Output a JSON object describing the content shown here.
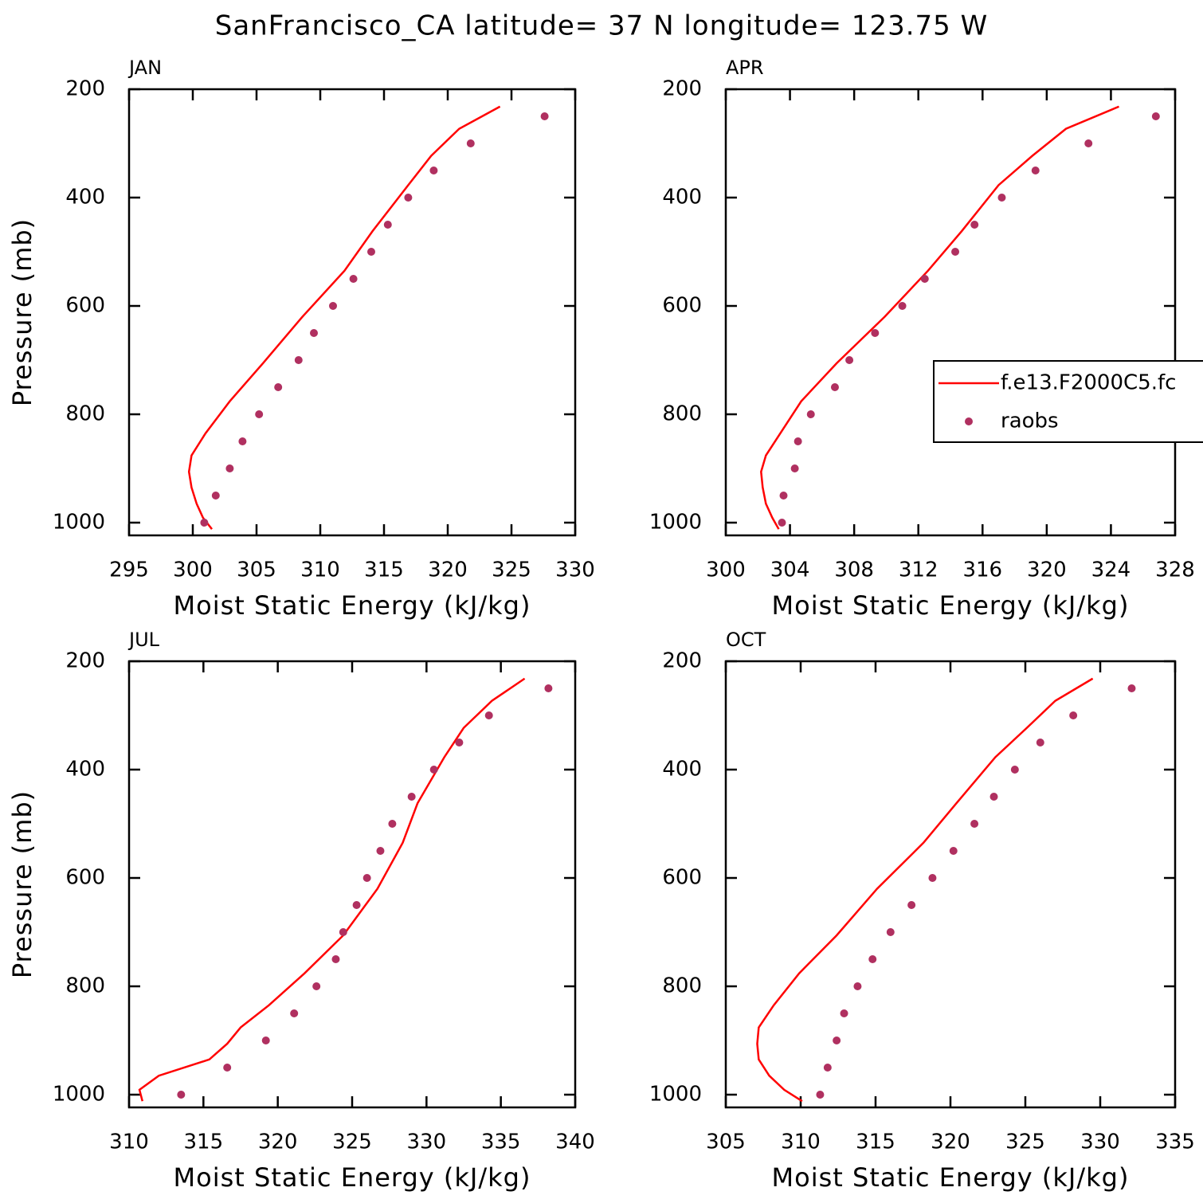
{
  "title": "SanFrancisco_CA  latitude= 37 N longitude= 123.75 W",
  "chart_data": [
    {
      "type": "line",
      "title": "JAN",
      "xlabel": "Moist Static Energy (kJ/kg)",
      "ylabel": "Pressure (mb)",
      "xlim": [
        295,
        330
      ],
      "xticks": [
        295,
        300,
        305,
        310,
        315,
        320,
        325,
        330
      ],
      "ylim": [
        1023.5,
        200
      ],
      "yticks": [
        200,
        400,
        600,
        800,
        1000
      ],
      "series": [
        {
          "style": "line",
          "color": "#ff0000",
          "x": [
            324.1,
            320.9,
            318.7,
            316.9,
            314.1,
            311.9,
            308.6,
            305.5,
            302.9,
            301.0,
            299.9,
            299.7,
            299.9,
            300.3,
            300.8,
            301.5
          ],
          "y": [
            232,
            273,
            323,
            377,
            462,
            535,
            620,
            706,
            776,
            835,
            876,
            906,
            935,
            965,
            991,
            1012
          ]
        },
        {
          "style": "marker",
          "color": "#b03060",
          "x": [
            327.6,
            321.8,
            318.9,
            316.9,
            315.3,
            314.0,
            312.6,
            311.0,
            309.5,
            308.3,
            306.7,
            305.2,
            303.9,
            302.9,
            301.8,
            300.9
          ],
          "y": [
            250,
            300,
            350,
            400,
            450,
            500,
            550,
            600,
            650,
            700,
            750,
            800,
            850,
            900,
            950,
            1000
          ]
        }
      ]
    },
    {
      "type": "line",
      "title": "APR",
      "xlabel": "Moist Static Energy (kJ/kg)",
      "xlim": [
        300,
        328
      ],
      "xticks": [
        300,
        304,
        308,
        312,
        316,
        320,
        324,
        328
      ],
      "ylim": [
        1023.5,
        200
      ],
      "yticks": [
        200,
        400,
        600,
        800,
        1000
      ],
      "legend": "right",
      "series": [
        {
          "name": "f.e13.F2000C5.fc",
          "style": "line",
          "color": "#ff0000",
          "x": [
            324.5,
            321.2,
            319.1,
            317.0,
            314.7,
            312.6,
            309.9,
            306.9,
            304.7,
            303.4,
            302.5,
            302.2,
            302.3,
            302.5,
            302.9,
            303.3
          ],
          "y": [
            232,
            273,
            323,
            377,
            462,
            535,
            620,
            706,
            776,
            835,
            876,
            906,
            935,
            965,
            991,
            1012
          ]
        },
        {
          "name": "raobs",
          "style": "marker",
          "color": "#b03060",
          "x": [
            326.8,
            322.6,
            319.3,
            317.2,
            315.5,
            314.3,
            312.4,
            311.0,
            309.3,
            307.7,
            306.8,
            305.3,
            304.5,
            304.3,
            303.6,
            303.5
          ],
          "y": [
            250,
            300,
            350,
            400,
            450,
            500,
            550,
            600,
            650,
            700,
            750,
            800,
            850,
            900,
            950,
            1000
          ]
        }
      ]
    },
    {
      "type": "line",
      "title": "JUL",
      "xlabel": "Moist Static Energy (kJ/kg)",
      "ylabel": "Pressure (mb)",
      "xlim": [
        310,
        340
      ],
      "xticks": [
        310,
        315,
        320,
        325,
        330,
        335,
        340
      ],
      "ylim": [
        1023.5,
        200
      ],
      "yticks": [
        200,
        400,
        600,
        800,
        1000
      ],
      "series": [
        {
          "style": "line",
          "color": "#ff0000",
          "x": [
            336.6,
            334.4,
            332.5,
            331.2,
            329.4,
            328.4,
            326.7,
            324.4,
            321.8,
            319.4,
            317.5,
            316.6,
            315.4,
            312.0,
            310.7,
            310.9
          ],
          "y": [
            232,
            273,
            323,
            377,
            462,
            535,
            620,
            706,
            776,
            835,
            876,
            906,
            935,
            965,
            991,
            1012
          ]
        },
        {
          "style": "marker",
          "color": "#b03060",
          "x": [
            338.2,
            334.2,
            332.2,
            330.5,
            329.0,
            327.7,
            326.9,
            326.0,
            325.3,
            324.4,
            323.9,
            322.6,
            321.1,
            319.2,
            316.6,
            313.5
          ],
          "y": [
            250,
            300,
            350,
            400,
            450,
            500,
            550,
            600,
            650,
            700,
            750,
            800,
            850,
            900,
            950,
            1000
          ]
        }
      ]
    },
    {
      "type": "line",
      "title": "OCT",
      "xlabel": "Moist Static Energy (kJ/kg)",
      "xlim": [
        305,
        335
      ],
      "xticks": [
        305,
        310,
        315,
        320,
        325,
        330,
        335
      ],
      "ylim": [
        1023.5,
        200
      ],
      "yticks": [
        200,
        400,
        600,
        800,
        1000
      ],
      "series": [
        {
          "style": "line",
          "color": "#ff0000",
          "x": [
            329.5,
            327.0,
            325.1,
            323.0,
            320.4,
            318.2,
            315.1,
            312.4,
            309.9,
            308.2,
            307.2,
            307.1,
            307.2,
            307.9,
            308.9,
            310.1
          ],
          "y": [
            232,
            273,
            323,
            377,
            462,
            535,
            620,
            706,
            776,
            835,
            876,
            906,
            935,
            965,
            991,
            1012
          ]
        },
        {
          "style": "marker",
          "color": "#b03060",
          "x": [
            332.1,
            328.2,
            326.0,
            324.3,
            322.9,
            321.6,
            320.2,
            318.8,
            317.4,
            316.0,
            314.8,
            313.8,
            312.9,
            312.4,
            311.8,
            311.3
          ],
          "y": [
            250,
            300,
            350,
            400,
            450,
            500,
            550,
            600,
            650,
            700,
            750,
            800,
            850,
            900,
            950,
            1000
          ]
        }
      ]
    }
  ]
}
